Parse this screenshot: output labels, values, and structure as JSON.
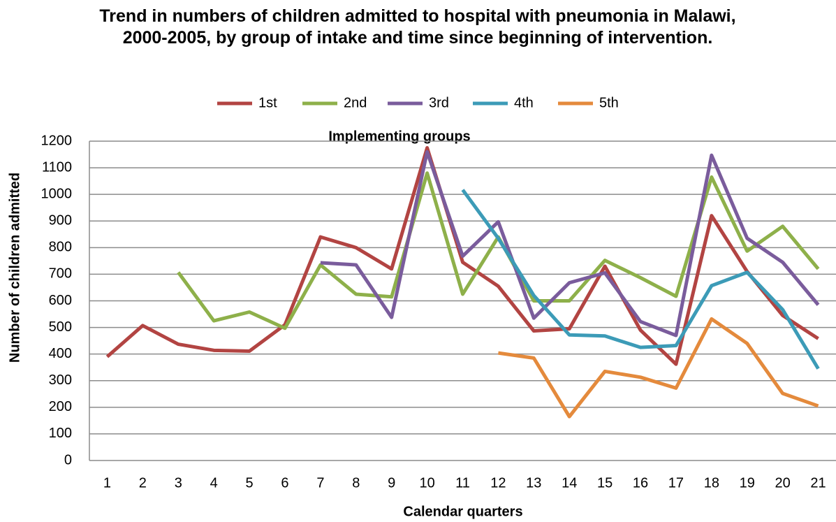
{
  "chart_data": {
    "type": "line",
    "title": "Trend in numbers of children admitted to hospital with pneumonia in Malawi, 2000-2005, by group of intake and time since beginning of intervention.",
    "annotation": "Implementing groups",
    "x_label": "Calendar quarters",
    "y_label": "Number of children admitted",
    "categories": [
      "1",
      "2",
      "3",
      "4",
      "5",
      "6",
      "7",
      "8",
      "9",
      "10",
      "11",
      "12",
      "13",
      "14",
      "15",
      "16",
      "17",
      "18",
      "19",
      "20",
      "21"
    ],
    "series": [
      {
        "name": "1st",
        "color": "#b24442",
        "values": [
          390,
          507,
          437,
          414,
          411,
          510,
          840,
          800,
          720,
          1175,
          745,
          655,
          487,
          495,
          730,
          490,
          362,
          920,
          710,
          545,
          458
        ]
      },
      {
        "name": "2nd",
        "color": "#8eb04a",
        "values": [
          null,
          null,
          707,
          525,
          558,
          497,
          735,
          625,
          615,
          1080,
          625,
          840,
          600,
          600,
          752,
          687,
          617,
          1065,
          787,
          880,
          720
        ]
      },
      {
        "name": "3rd",
        "color": "#7a5c9c",
        "values": [
          null,
          null,
          null,
          null,
          null,
          null,
          743,
          735,
          538,
          1160,
          768,
          897,
          535,
          668,
          705,
          522,
          470,
          1147,
          835,
          745,
          585
        ]
      },
      {
        "name": "4th",
        "color": "#3c9bb7",
        "values": [
          null,
          null,
          null,
          null,
          null,
          null,
          null,
          null,
          null,
          null,
          1017,
          835,
          620,
          472,
          468,
          425,
          432,
          657,
          707,
          567,
          345
        ]
      },
      {
        "name": "5th",
        "color": "#e48a3c",
        "values": [
          null,
          null,
          null,
          null,
          null,
          null,
          null,
          null,
          null,
          null,
          null,
          404,
          385,
          165,
          335,
          313,
          272,
          532,
          440,
          252,
          205
        ]
      }
    ],
    "ylim": [
      0,
      1200
    ],
    "yticks": [
      0,
      100,
      200,
      300,
      400,
      500,
      600,
      700,
      800,
      900,
      1000,
      1100,
      1200
    ],
    "grid": true,
    "legend": "top"
  }
}
